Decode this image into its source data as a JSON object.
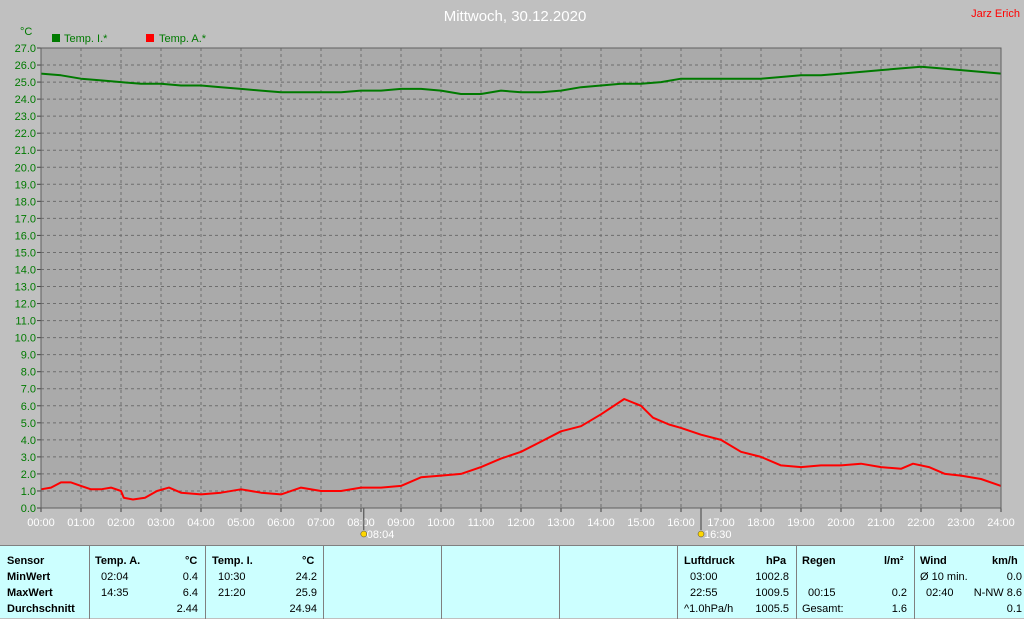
{
  "header": {
    "title": "Mittwoch, 30.12.2020",
    "author": "Jarz Erich"
  },
  "colors": {
    "background": "#c0c0c0",
    "plot_bg": "#aaaaaa",
    "series_inside": "#007a00",
    "series_outside": "#ff0000",
    "table_bg": "#ccffff",
    "title_color": "#ffffff",
    "author_color": "#ff0000"
  },
  "chart_data": {
    "type": "line",
    "ylabel": "°C",
    "ylim": [
      0,
      27
    ],
    "yticks": [
      "0.0",
      "1.0",
      "2.0",
      "3.0",
      "4.0",
      "5.0",
      "6.0",
      "7.0",
      "8.0",
      "9.0",
      "10.0",
      "11.0",
      "12.0",
      "13.0",
      "14.0",
      "15.0",
      "16.0",
      "17.0",
      "18.0",
      "19.0",
      "20.0",
      "21.0",
      "22.0",
      "23.0",
      "24.0",
      "25.0",
      "26.0",
      "27.0"
    ],
    "xlim": [
      0,
      24
    ],
    "xticks": [
      "00:00",
      "01:00",
      "02:00",
      "03:00",
      "04:00",
      "05:00",
      "06:00",
      "07:00",
      "08:00",
      "09:00",
      "10:00",
      "11:00",
      "12:00",
      "13:00",
      "14:00",
      "15:00",
      "16:00",
      "17:00",
      "18:00",
      "19:00",
      "20:00",
      "21:00",
      "22:00",
      "23:00",
      "24:00"
    ],
    "grid": true,
    "legend": "top-left",
    "markers": [
      {
        "hour": 8.07,
        "label": "08:04"
      },
      {
        "hour": 16.5,
        "label": "16:30"
      }
    ],
    "series": [
      {
        "name": "Temp. I.*",
        "color": "#007a00",
        "points": [
          [
            0,
            25.5
          ],
          [
            0.5,
            25.4
          ],
          [
            1,
            25.2
          ],
          [
            1.5,
            25.1
          ],
          [
            2,
            25.0
          ],
          [
            2.5,
            24.9
          ],
          [
            3,
            24.9
          ],
          [
            3.5,
            24.8
          ],
          [
            4,
            24.8
          ],
          [
            4.5,
            24.7
          ],
          [
            5,
            24.6
          ],
          [
            5.5,
            24.5
          ],
          [
            6,
            24.4
          ],
          [
            6.5,
            24.4
          ],
          [
            7,
            24.4
          ],
          [
            7.5,
            24.4
          ],
          [
            8,
            24.5
          ],
          [
            8.5,
            24.5
          ],
          [
            9,
            24.6
          ],
          [
            9.5,
            24.6
          ],
          [
            10,
            24.5
          ],
          [
            10.5,
            24.3
          ],
          [
            11,
            24.3
          ],
          [
            11.5,
            24.5
          ],
          [
            12,
            24.4
          ],
          [
            12.5,
            24.4
          ],
          [
            13,
            24.5
          ],
          [
            13.5,
            24.7
          ],
          [
            14,
            24.8
          ],
          [
            14.5,
            24.9
          ],
          [
            15,
            24.9
          ],
          [
            15.5,
            25.0
          ],
          [
            16,
            25.2
          ],
          [
            16.5,
            25.2
          ],
          [
            17,
            25.2
          ],
          [
            17.5,
            25.2
          ],
          [
            18,
            25.2
          ],
          [
            18.5,
            25.3
          ],
          [
            19,
            25.4
          ],
          [
            19.5,
            25.4
          ],
          [
            20,
            25.5
          ],
          [
            20.5,
            25.6
          ],
          [
            21,
            25.7
          ],
          [
            21.5,
            25.8
          ],
          [
            22,
            25.9
          ],
          [
            22.5,
            25.8
          ],
          [
            23,
            25.7
          ],
          [
            23.5,
            25.6
          ],
          [
            24,
            25.5
          ]
        ]
      },
      {
        "name": "Temp. A.*",
        "color": "#ff0000",
        "points": [
          [
            0,
            1.1
          ],
          [
            0.25,
            1.2
          ],
          [
            0.5,
            1.5
          ],
          [
            0.75,
            1.5
          ],
          [
            1,
            1.3
          ],
          [
            1.25,
            1.1
          ],
          [
            1.5,
            1.1
          ],
          [
            1.75,
            1.2
          ],
          [
            2,
            1.0
          ],
          [
            2.07,
            0.6
          ],
          [
            2.3,
            0.5
          ],
          [
            2.6,
            0.6
          ],
          [
            2.9,
            1.0
          ],
          [
            3.2,
            1.2
          ],
          [
            3.5,
            0.9
          ],
          [
            4,
            0.8
          ],
          [
            4.5,
            0.9
          ],
          [
            5,
            1.1
          ],
          [
            5.5,
            0.9
          ],
          [
            6,
            0.8
          ],
          [
            6.5,
            1.2
          ],
          [
            7,
            1.0
          ],
          [
            7.5,
            1.0
          ],
          [
            8,
            1.2
          ],
          [
            8.5,
            1.2
          ],
          [
            9,
            1.3
          ],
          [
            9.5,
            1.8
          ],
          [
            10,
            1.9
          ],
          [
            10.5,
            2.0
          ],
          [
            11,
            2.4
          ],
          [
            11.5,
            2.9
          ],
          [
            12,
            3.3
          ],
          [
            12.5,
            3.9
          ],
          [
            13,
            4.5
          ],
          [
            13.5,
            4.8
          ],
          [
            14,
            5.5
          ],
          [
            14.58,
            6.4
          ],
          [
            15,
            6.0
          ],
          [
            15.3,
            5.3
          ],
          [
            15.7,
            4.9
          ],
          [
            16,
            4.7
          ],
          [
            16.5,
            4.3
          ],
          [
            17,
            4.0
          ],
          [
            17.5,
            3.3
          ],
          [
            18,
            3.0
          ],
          [
            18.5,
            2.5
          ],
          [
            19,
            2.4
          ],
          [
            19.5,
            2.5
          ],
          [
            20,
            2.5
          ],
          [
            20.5,
            2.6
          ],
          [
            21,
            2.4
          ],
          [
            21.5,
            2.3
          ],
          [
            21.8,
            2.6
          ],
          [
            22.2,
            2.4
          ],
          [
            22.6,
            2.0
          ],
          [
            23,
            1.9
          ],
          [
            23.5,
            1.7
          ],
          [
            24,
            1.3
          ]
        ]
      }
    ]
  },
  "table": {
    "sensor": {
      "header": "Sensor",
      "min": "MinWert",
      "max": "MaxWert",
      "avg": "Durchschnitt"
    },
    "temp_a": {
      "header": "Temp. A.",
      "unit": "°C",
      "min_time": "02:04",
      "min_val": "0.4",
      "max_time": "14:35",
      "max_val": "6.4",
      "avg": "2.44"
    },
    "temp_i": {
      "header": "Temp. I.",
      "unit": "°C",
      "min_time": "10:30",
      "min_val": "24.2",
      "max_time": "21:20",
      "max_val": "25.9",
      "avg": "24.94"
    },
    "pressure": {
      "header": "Luftdruck",
      "unit": "hPa",
      "min_time": "03:00",
      "min_val": "1002.8",
      "max_time": "22:55",
      "max_val": "1009.5",
      "trend_label": "^1.0hPa/h",
      "current": "1005.5"
    },
    "rain": {
      "header": "Regen",
      "unit": "l/m²",
      "time": "00:15",
      "val": "0.2",
      "total_label": "Gesamt:",
      "total": "1.6"
    },
    "wind": {
      "header": "Wind",
      "unit": "km/h",
      "avg_label": "Ø 10 min.",
      "avg_val": "0.0",
      "max_time": "02:40",
      "max_val": "N-NW 8.6",
      "last": "0.1"
    }
  }
}
